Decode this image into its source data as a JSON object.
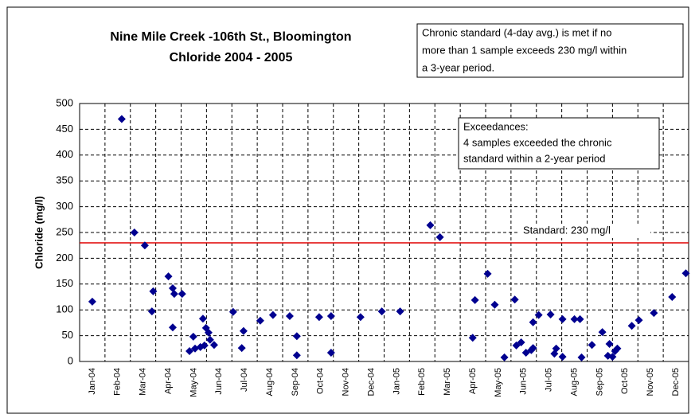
{
  "chart_data": {
    "type": "scatter",
    "title": [
      "Nine Mile Creek -106th St., Bloomington",
      "Chloride 2004 - 2005"
    ],
    "y_label": "Chloride (mg/l)",
    "note": [
      "Chronic standard (4-day avg.) is met if no",
      "more than 1 sample exceeds 230 mg/l within",
      "a 3-year period."
    ],
    "annotation": [
      "Exceedances:",
      "4 samples exceeded the chronic",
      "standard within a 2-year period"
    ],
    "reference_line": {
      "value": 230,
      "label": "Standard: 230 mg/l",
      "color": "#e00000"
    },
    "xlim": [
      0,
      24
    ],
    "ylim": [
      0,
      500
    ],
    "yticks": [
      0,
      50,
      100,
      150,
      200,
      250,
      300,
      350,
      400,
      450,
      500
    ],
    "xticks": [
      {
        "value": 0,
        "label": "Jan-04"
      },
      {
        "value": 1,
        "label": "Feb-04"
      },
      {
        "value": 2,
        "label": "Mar-04"
      },
      {
        "value": 3,
        "label": "Apr-04"
      },
      {
        "value": 4,
        "label": "May-04"
      },
      {
        "value": 5,
        "label": "Jun-04"
      },
      {
        "value": 6,
        "label": "Jul-04"
      },
      {
        "value": 7,
        "label": "Aug-04"
      },
      {
        "value": 8,
        "label": "Sep-04"
      },
      {
        "value": 9,
        "label": "Oct-04"
      },
      {
        "value": 10,
        "label": "Nov-04"
      },
      {
        "value": 11,
        "label": "Dec-04"
      },
      {
        "value": 12,
        "label": "Jan-05"
      },
      {
        "value": 13,
        "label": "Feb-05"
      },
      {
        "value": 14,
        "label": "Mar-05"
      },
      {
        "value": 15,
        "label": "Apr-05"
      },
      {
        "value": 16,
        "label": "May-05"
      },
      {
        "value": 17,
        "label": "Jun-05"
      },
      {
        "value": 18,
        "label": "Jul-05"
      },
      {
        "value": 19,
        "label": "Aug-05"
      },
      {
        "value": 20,
        "label": "Sep-05"
      },
      {
        "value": 21,
        "label": "Oct-05"
      },
      {
        "value": 22,
        "label": "Nov-05"
      },
      {
        "value": 23,
        "label": "Dec-05"
      }
    ],
    "grid": true,
    "series": [
      {
        "color": "#000090",
        "x": [
          0.5,
          1.66,
          2.16,
          2.57,
          2.9,
          2.85,
          3.5,
          3.67,
          3.73,
          4.04,
          3.67,
          4.33,
          4.48,
          4.55,
          4.76,
          4.86,
          4.92,
          4.98,
          5.08,
          5.14,
          5.3,
          6.05,
          6.39,
          6.46,
          7.12,
          7.62,
          8.28,
          8.56,
          8.56,
          9.44,
          9.91,
          9.91,
          11.07,
          11.91,
          12.63,
          13.82,
          14.2,
          15.49,
          15.58,
          16.08,
          16.36,
          16.74,
          17.15,
          17.21,
          17.4,
          17.59,
          17.8,
          17.87,
          17.87,
          18.09,
          18.56,
          18.71,
          18.78,
          19.03,
          19.03,
          19.5,
          19.72,
          19.78,
          20.19,
          20.6,
          20.82,
          20.88,
          21.0,
          21.1,
          21.19,
          21.76,
          22.04,
          22.63,
          23.35,
          23.89
        ],
        "values": [
          116,
          470,
          250,
          225,
          136,
          97,
          165,
          142,
          131,
          131,
          66,
          20,
          48,
          25,
          28,
          83,
          31,
          65,
          56,
          42,
          32,
          96,
          26,
          59,
          79,
          90,
          88,
          12,
          49,
          86,
          88,
          17,
          86,
          97,
          97,
          264,
          241,
          46,
          119,
          170,
          110,
          8,
          120,
          31,
          37,
          17,
          22,
          26,
          76,
          90,
          91,
          15,
          25,
          82,
          9,
          82,
          82,
          8,
          32,
          57,
          11,
          34,
          9,
          20,
          25,
          69,
          80,
          94,
          125,
          171
        ]
      }
    ]
  }
}
